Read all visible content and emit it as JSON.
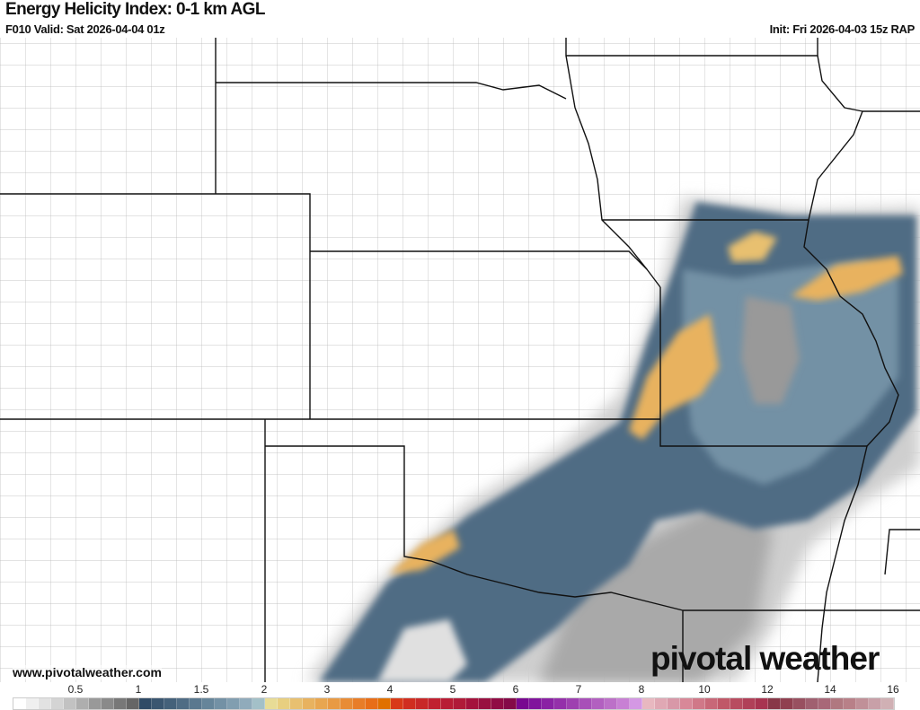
{
  "header": {
    "title": "Energy Helicity Index: 0-1 km AGL",
    "valid": "F010 Valid: Sat 2026-04-04 01z",
    "init": "Init: Fri 2026-04-03 15z RAP"
  },
  "footer": {
    "url": "www.pivotalweather.com",
    "logo": "pivotal weather"
  },
  "colorbar": {
    "ticks": [
      {
        "label": "0.5",
        "value": 0.5
      },
      {
        "label": "1",
        "value": 1
      },
      {
        "label": "1.5",
        "value": 1.5
      },
      {
        "label": "2",
        "value": 2
      },
      {
        "label": "3",
        "value": 3
      },
      {
        "label": "4",
        "value": 4
      },
      {
        "label": "5",
        "value": 5
      },
      {
        "label": "6",
        "value": 6
      },
      {
        "label": "7",
        "value": 7
      },
      {
        "label": "8",
        "value": 8
      },
      {
        "label": "10",
        "value": 10
      },
      {
        "label": "12",
        "value": 12
      },
      {
        "label": "14",
        "value": 14
      },
      {
        "label": "16",
        "value": 16
      }
    ],
    "colors": [
      "#ffffff",
      "#efefef",
      "#e2e2e2",
      "#d4d4d4",
      "#c2c2c2",
      "#aeaeae",
      "#999999",
      "#8a8a8a",
      "#787878",
      "#666666",
      "#2f4b66",
      "#3a5670",
      "#44617a",
      "#4f6c84",
      "#5a788f",
      "#66859a",
      "#7391a5",
      "#819eb0",
      "#90abbb",
      "#a3c0c8",
      "#e8dc96",
      "#e8cf80",
      "#e8c070",
      "#e8b25f",
      "#e8a650",
      "#e89a44",
      "#e88c36",
      "#e87d28",
      "#e86e18",
      "#e07000",
      "#d83a18",
      "#d02e20",
      "#c82828",
      "#c02030",
      "#b81c34",
      "#b01a38",
      "#a4123c",
      "#981040",
      "#900c44",
      "#840a48",
      "#780890",
      "#80149c",
      "#8a22a4",
      "#9430aa",
      "#9e40b0",
      "#a850b8",
      "#b260c0",
      "#bc70c8",
      "#c880d4",
      "#d498e4",
      "#e8b8c0",
      "#e0a8b4",
      "#d898a8",
      "#d88898",
      "#d07888",
      "#c86878",
      "#c05868",
      "#b84c60",
      "#b04058",
      "#a83450",
      "#883848",
      "#904050",
      "#985060",
      "#a06070",
      "#a86878",
      "#b07880",
      "#b88088",
      "#c09098",
      "#c8a0a8",
      "#d0b0b4"
    ]
  }
}
